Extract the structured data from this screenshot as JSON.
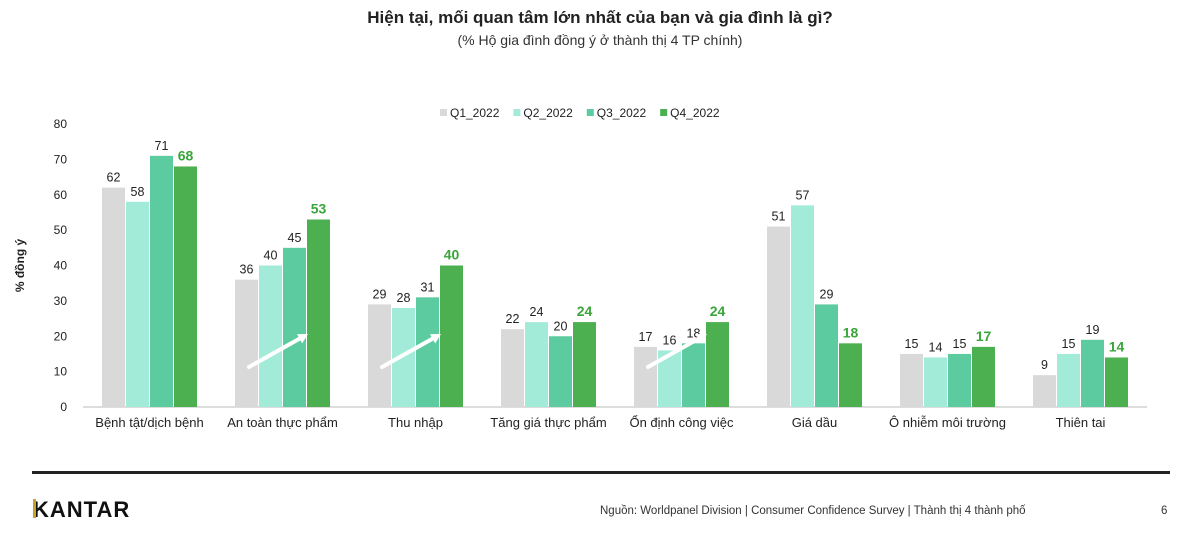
{
  "header": {
    "title": "Hiện tại, mối quan tâm lớn nhất của bạn và gia đình là gì?",
    "subtitle": "(% Hộ gia đình đồng ý ở thành thị 4 TP chính)"
  },
  "chart_data": {
    "type": "bar",
    "ylabel": "% đồng ý",
    "ylim": [
      0,
      80
    ],
    "yticks": [
      0,
      10,
      20,
      30,
      40,
      50,
      60,
      70,
      80
    ],
    "legend_position": "top-center",
    "categories": [
      "Bệnh tật/dịch bệnh",
      "An toàn thực phẩm",
      "Thu nhập",
      "Tăng giá thực phẩm",
      "Ổn định công việc",
      "Giá dầu",
      "Ô nhiễm môi trường",
      "Thiên tai"
    ],
    "series": [
      {
        "name": "Q1_2022",
        "color": "#d9d9d9",
        "values": [
          62,
          36,
          29,
          22,
          17,
          51,
          15,
          9
        ]
      },
      {
        "name": "Q2_2022",
        "color": "#a3ebd9",
        "values": [
          58,
          40,
          28,
          24,
          16,
          57,
          14,
          15
        ]
      },
      {
        "name": "Q3_2022",
        "color": "#5ccba0",
        "values": [
          71,
          45,
          31,
          20,
          18,
          29,
          15,
          19
        ]
      },
      {
        "name": "Q4_2022",
        "color": "#4caf50",
        "values": [
          68,
          53,
          40,
          24,
          24,
          18,
          17,
          14
        ]
      }
    ],
    "highlight_series": "Q4_2022",
    "highlight_label_color": "#3aa53a",
    "trend_arrows_on_categories": [
      "An toàn thực phẩm",
      "Thu nhập",
      "Ổn định công việc"
    ]
  },
  "footer": {
    "logo": "KANTAR",
    "source": "Nguồn: Worldpanel Division | Consumer Confidence Survey | Thành thị 4 thành phố",
    "page_number": "6"
  }
}
